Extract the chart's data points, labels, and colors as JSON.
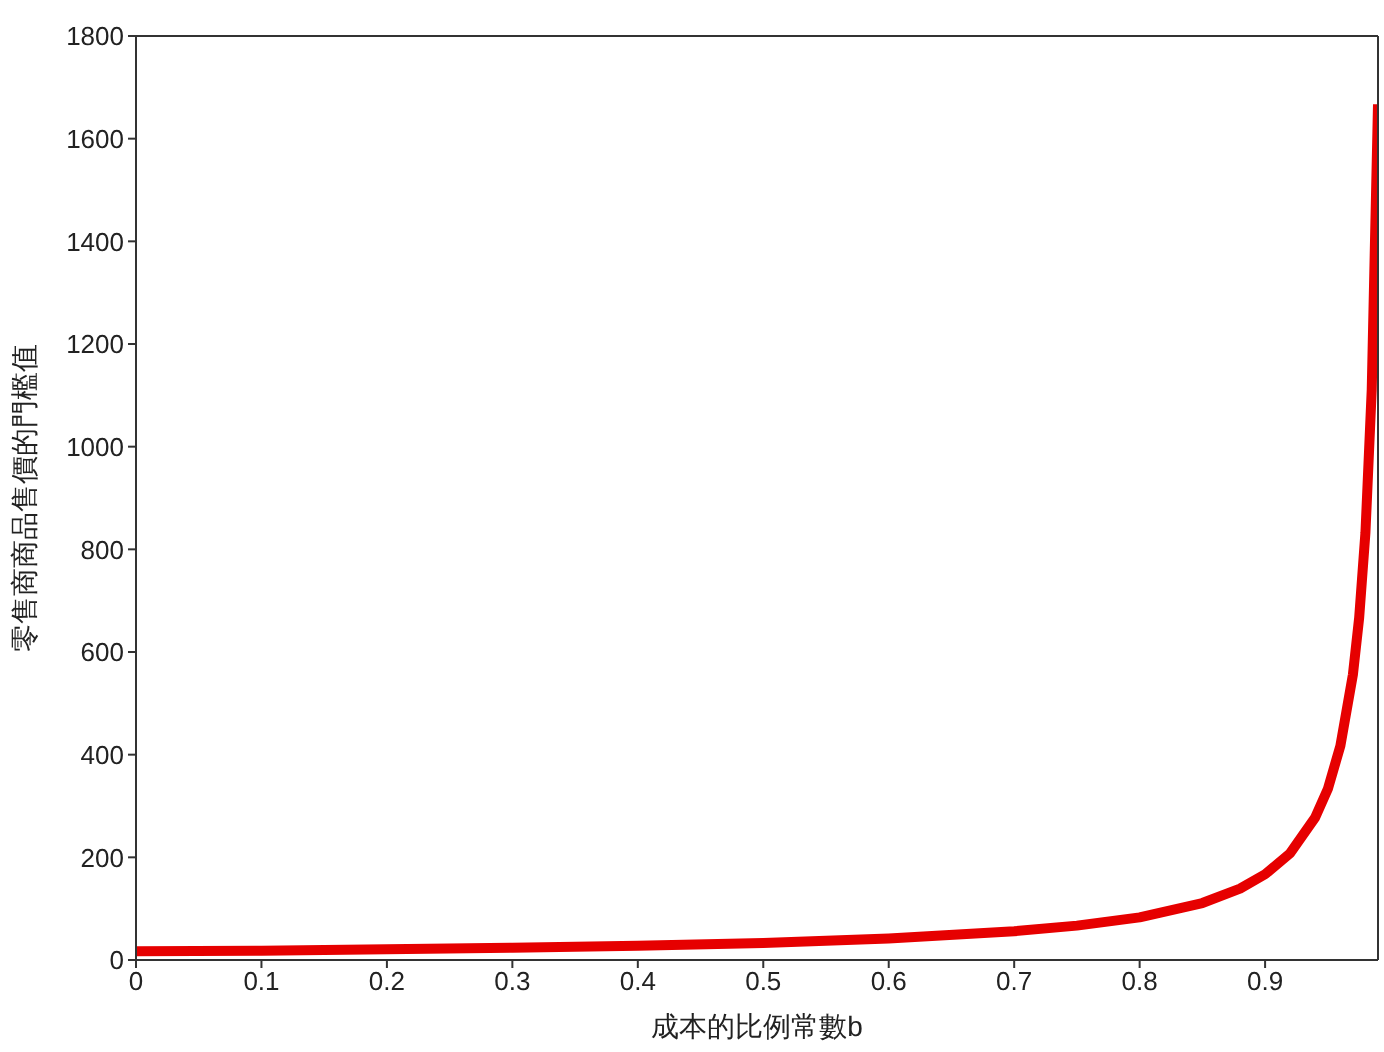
{
  "chart_data": {
    "type": "line",
    "xlabel": "成本的比例常數b",
    "ylabel": "零售商商品售價的門檻值",
    "x": [
      0,
      0.1,
      0.2,
      0.3,
      0.4,
      0.5,
      0.6,
      0.7,
      0.75,
      0.8,
      0.85,
      0.88,
      0.9,
      0.92,
      0.94,
      0.95,
      0.96,
      0.97,
      0.975,
      0.98,
      0.985,
      0.99
    ],
    "series": [
      {
        "color": "#e60000",
        "values": [
          17,
          18,
          21,
          24,
          28,
          33,
          42,
          56,
          67,
          83,
          111,
          139,
          167,
          208,
          278,
          333,
          417,
          556,
          667,
          833,
          1111,
          1667
        ]
      }
    ],
    "xlim": [
      0,
      0.99
    ],
    "xticks": [
      0,
      0.1,
      0.2,
      0.3,
      0.4,
      0.5,
      0.6,
      0.7,
      0.8,
      0.9
    ],
    "ylim": [
      0,
      1800
    ],
    "yticks": [
      0,
      200,
      400,
      600,
      800,
      1000,
      1200,
      1400,
      1600,
      1800
    ],
    "legend": false,
    "marker": "none",
    "line_style": "solid"
  }
}
